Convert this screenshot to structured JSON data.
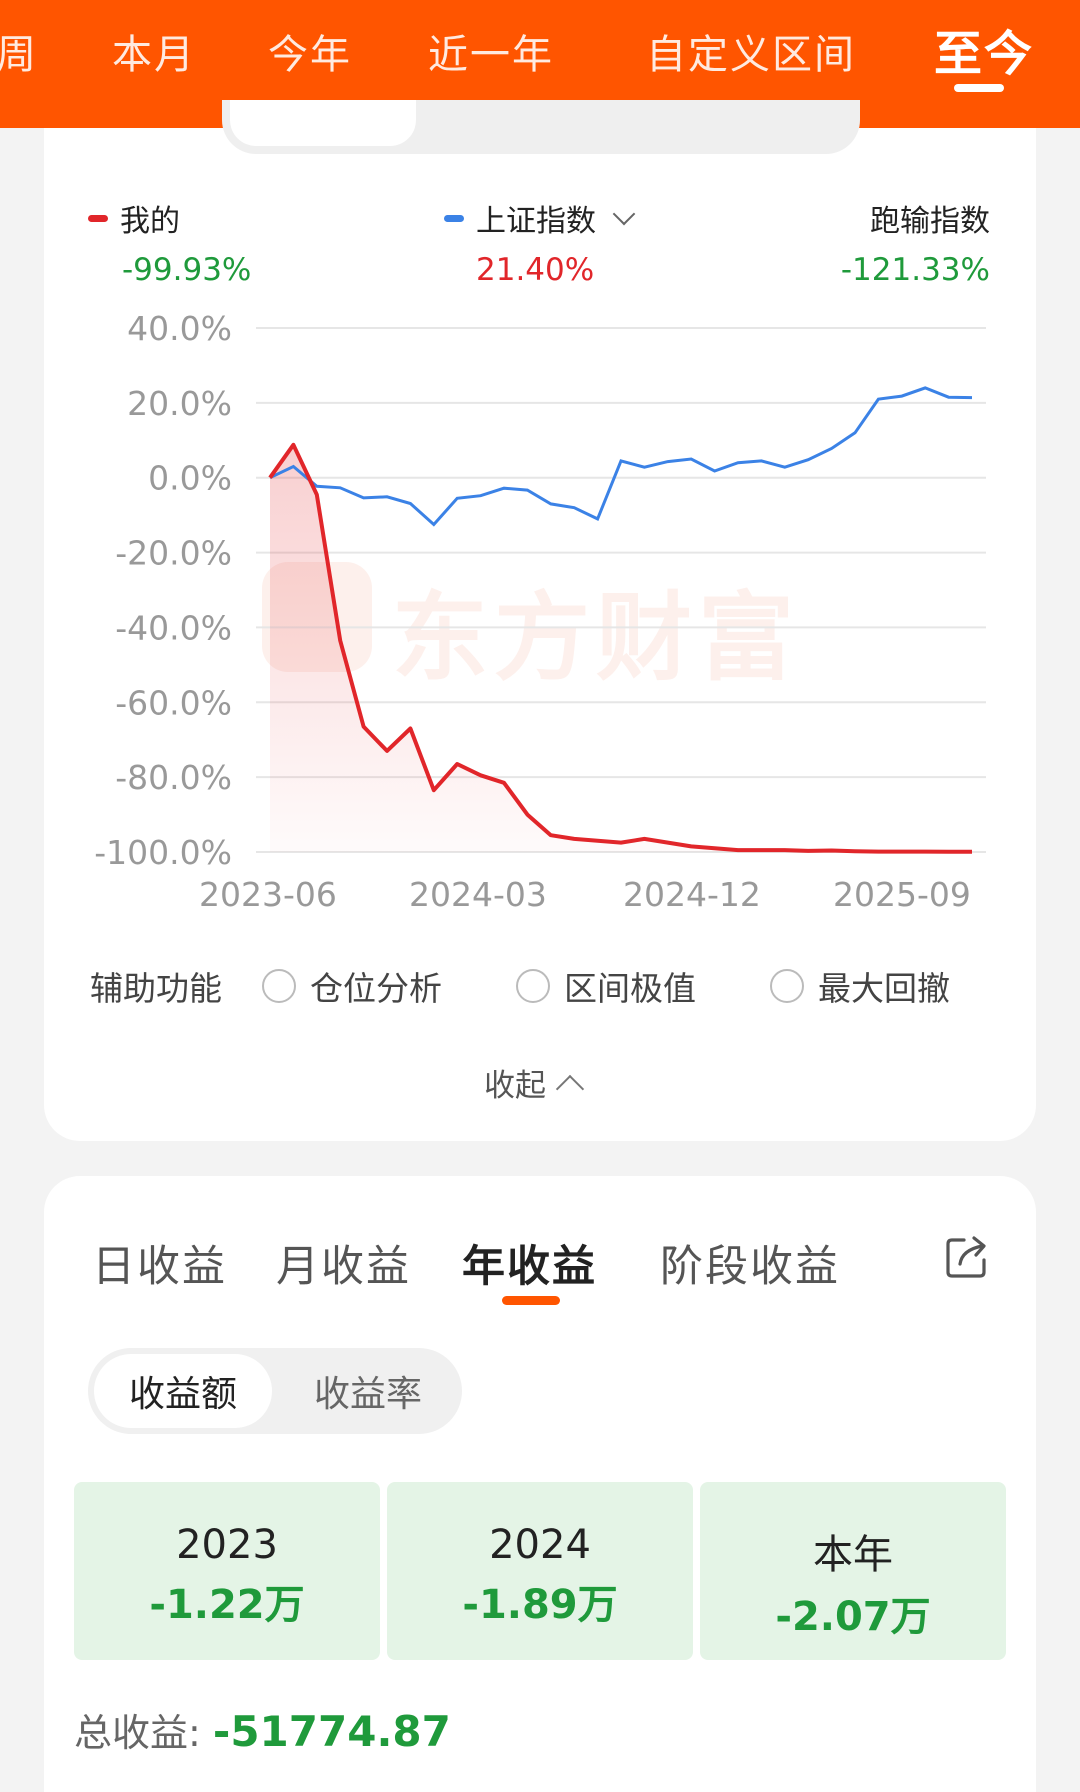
{
  "topbar": {
    "tabs": [
      "周",
      "本月",
      "今年",
      "近一年",
      "自定义区间",
      "至今"
    ],
    "active_tab": "至今"
  },
  "legend": {
    "mine": {
      "label": "我的",
      "value": "-99.93%",
      "color": "#e1262a"
    },
    "index": {
      "label": "上证指数",
      "value": "21.40%",
      "color": "#3b82e6"
    },
    "outperform": {
      "label": "跑输指数",
      "value": "-121.33%"
    }
  },
  "watermark": "东方财富",
  "chart_data": {
    "type": "line",
    "ylim": [
      -100,
      40
    ],
    "y_ticks": [
      "40.0%",
      "20.0%",
      "0.0%",
      "-20.0%",
      "-40.0%",
      "-60.0%",
      "-80.0%",
      "-100.0%"
    ],
    "x_ticks": [
      "2023-06",
      "2024-03",
      "2024-12",
      "2025-09"
    ],
    "series": [
      {
        "name": "我的",
        "color": "#e1262a",
        "values": [
          0,
          8.8,
          -4.5,
          -43.5,
          -66.5,
          -73,
          -67,
          -83.5,
          -76.5,
          -79.5,
          -81.5,
          -90,
          -95.5,
          -96.5,
          -97,
          -97.5,
          -96.5,
          -97.5,
          -98.5,
          -99,
          -99.5,
          -99.5,
          -99.5,
          -99.7,
          -99.6,
          -99.8,
          -99.9,
          -99.9,
          -99.9,
          -99.95,
          -99.93
        ]
      },
      {
        "name": "上证指数",
        "color": "#3b82e6",
        "values": [
          0,
          3,
          -2.3,
          -2.7,
          -5.4,
          -5.1,
          -6.9,
          -12.5,
          -5.5,
          -4.8,
          -2.8,
          -3.3,
          -7,
          -8,
          -11,
          4.5,
          2.8,
          4.3,
          5,
          1.8,
          4,
          4.5,
          2.8,
          4.8,
          7.8,
          12,
          21,
          21.8,
          24,
          21.5,
          21.4
        ]
      }
    ]
  },
  "aux": {
    "label": "辅助功能",
    "options": [
      "仓位分析",
      "区间极值",
      "最大回撤"
    ]
  },
  "collapse_label": "收起",
  "profit_tabs": [
    "日收益",
    "月收益",
    "年收益",
    "阶段收益"
  ],
  "profit_active_tab": "年收益",
  "metric_toggle": [
    "收益额",
    "收益率"
  ],
  "years": [
    {
      "label": "2023",
      "value": "-1.22万"
    },
    {
      "label": "2024",
      "value": "-1.89万"
    },
    {
      "label": "本年",
      "value": "-2.07万"
    }
  ],
  "total": {
    "label": "总收益:",
    "value": "-51774.87"
  }
}
